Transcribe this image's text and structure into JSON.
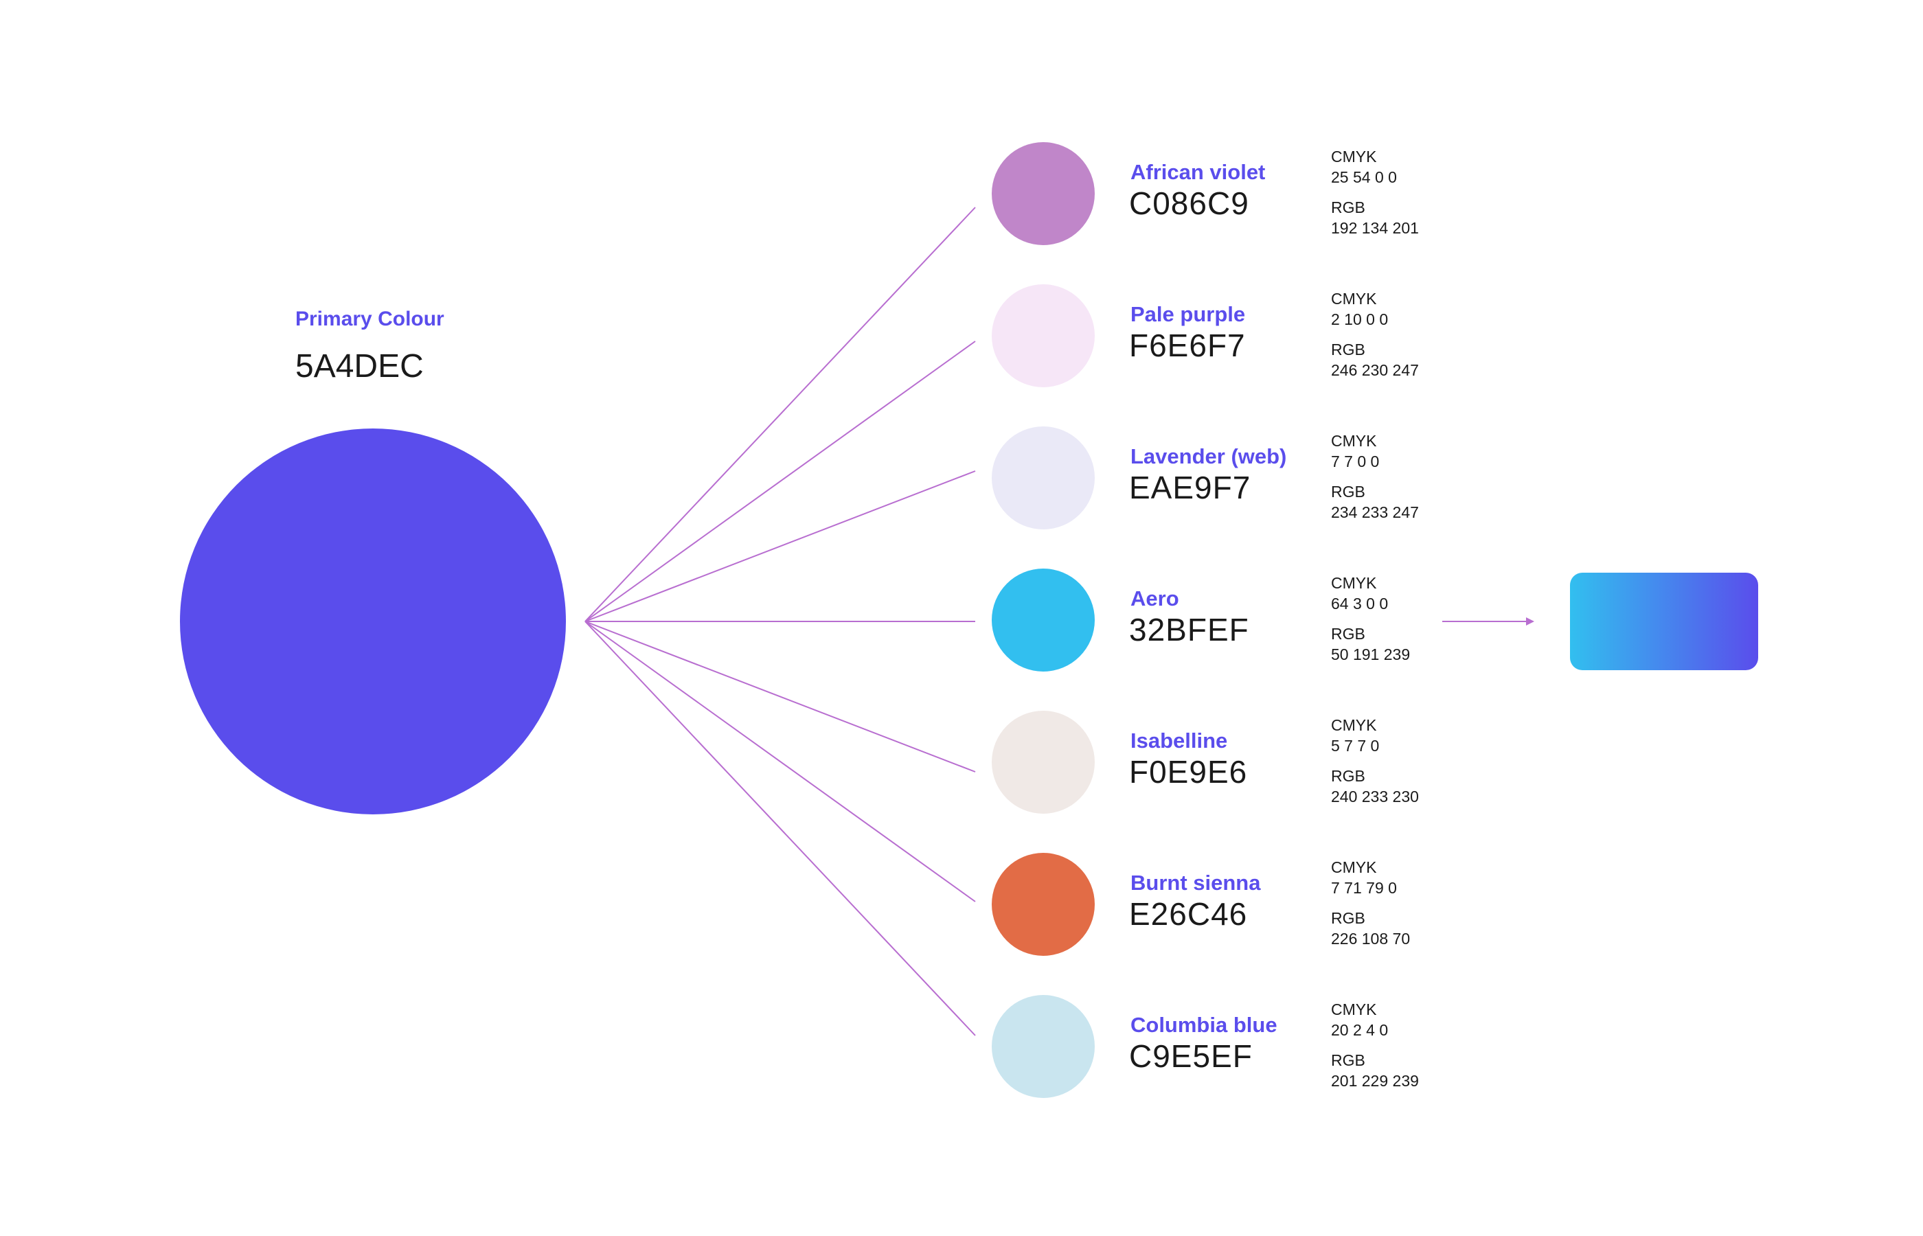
{
  "primary": {
    "label": "Primary Colour",
    "hex": "5A4DEC",
    "color": "#5A4DEC"
  },
  "connector_color": "#B86ED0",
  "swatches": [
    {
      "name": "African violet",
      "hex": "C086C9",
      "color": "#C086C9",
      "cmyk_label": "CMYK",
      "cmyk": "25 54 0 0",
      "rgb_label": "RGB",
      "rgb": "192 134 201"
    },
    {
      "name": "Pale purple",
      "hex": "F6E6F7",
      "color": "#F6E6F7",
      "cmyk_label": "CMYK",
      "cmyk": "2 10 0 0",
      "rgb_label": "RGB",
      "rgb": "246 230 247"
    },
    {
      "name": "Lavender (web)",
      "hex": "EAE9F7",
      "color": "#EAE9F7",
      "cmyk_label": "CMYK",
      "cmyk": "7 7 0 0",
      "rgb_label": "RGB",
      "rgb": "234 233 247"
    },
    {
      "name": "Aero",
      "hex": "32BFEF",
      "color": "#32BFEF",
      "cmyk_label": "CMYK",
      "cmyk": "64 3 0 0",
      "rgb_label": "RGB",
      "rgb": "50 191 239"
    },
    {
      "name": "Isabelline",
      "hex": "F0E9E6",
      "color": "#F0E9E6",
      "cmyk_label": "CMYK",
      "cmyk": "5 7 7 0",
      "rgb_label": "RGB",
      "rgb": "240 233 230"
    },
    {
      "name": "Burnt sienna",
      "hex": "E26C46",
      "color": "#E26C46",
      "cmyk_label": "CMYK",
      "cmyk": "7 71 79 0",
      "rgb_label": "RGB",
      "rgb": "226 108 70"
    },
    {
      "name": "Columbia blue",
      "hex": "C9E5EF",
      "color": "#C9E5EF",
      "cmyk_label": "CMYK",
      "cmyk": "20 2 4 0",
      "rgb_label": "RGB",
      "rgb": "201 229 239"
    }
  ],
  "gradient": {
    "from": "#32BFEF",
    "to": "#5A4DEC"
  }
}
